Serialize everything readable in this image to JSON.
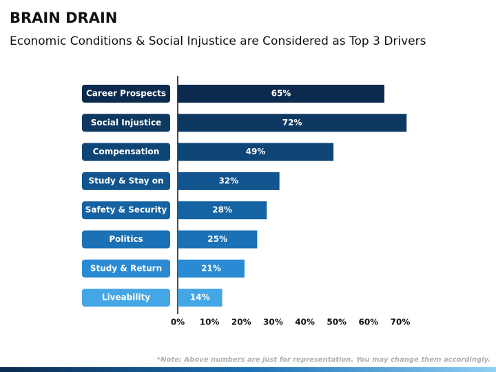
{
  "chart_data": {
    "type": "hbar",
    "title": "BRAIN DRAIN",
    "subtitle": "Economic Conditions & Social Injustice are Considered as Top 3 Drivers",
    "categories": [
      "Career Prospects",
      "Social Injustice",
      "Compensation",
      "Study & Stay on",
      "Safety & Security",
      "Politics",
      "Study & Return",
      "Liveability"
    ],
    "values": [
      65,
      72,
      49,
      32,
      28,
      25,
      21,
      14
    ],
    "value_labels": [
      "65%",
      "72%",
      "49%",
      "32%",
      "28%",
      "25%",
      "21%",
      "14%"
    ],
    "colors": [
      "#0b2a4e",
      "#0c3862",
      "#0e4577",
      "#12558e",
      "#1563a3",
      "#1a71b6",
      "#2a8ad3",
      "#45a6e6"
    ],
    "xlim": [
      0,
      70
    ],
    "xticks": [
      {
        "value": 0,
        "label": "0%"
      },
      {
        "value": 10,
        "label": "10%"
      },
      {
        "value": 20,
        "label": "20%"
      },
      {
        "value": 30,
        "label": "30%"
      },
      {
        "value": 40,
        "label": "40%"
      },
      {
        "value": 50,
        "label": "50%"
      },
      {
        "value": 60,
        "label": "60%"
      },
      {
        "value": 70,
        "label": "70%"
      }
    ],
    "grid": false,
    "note": "*Note: Above numbers are just for representation. You may change them accordingly."
  }
}
